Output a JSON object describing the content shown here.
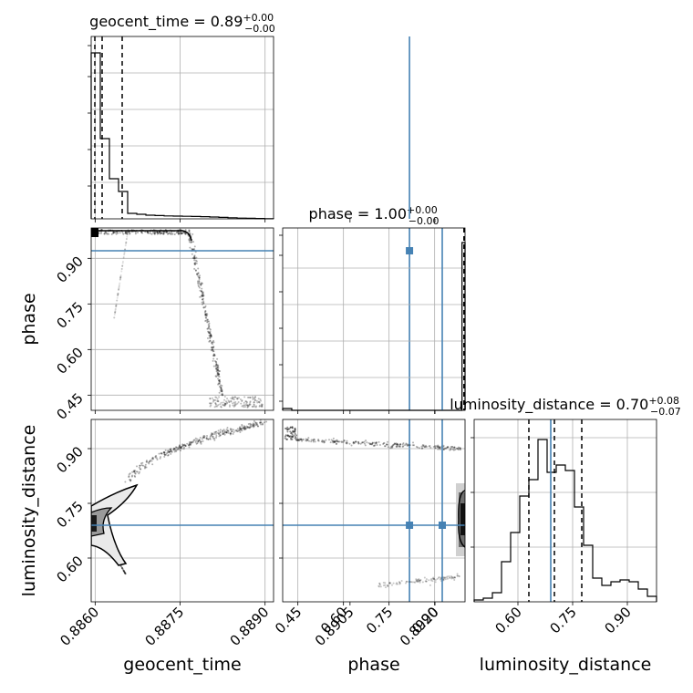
{
  "chart_data": {
    "type": "corner",
    "parameters": [
      {
        "name": "geocent_time",
        "range": [
          0.88593,
          0.88915
        ],
        "truth": 0.89155,
        "ticks": [
          "0.8860",
          "0.8875",
          "0.8890",
          "0.8905",
          "0.8920"
        ],
        "tick_values": [
          0.886,
          0.8875,
          0.889,
          0.8905,
          0.892
        ]
      },
      {
        "name": "phase",
        "range": [
          0.4,
          1.0
        ],
        "truth": 0.925,
        "ticks": [
          "0.45",
          "0.60",
          "0.75",
          "0.90"
        ],
        "tick_values": [
          0.45,
          0.6,
          0.75,
          0.9
        ]
      },
      {
        "name": "luminosity_distance",
        "range": [
          0.48,
          0.98
        ],
        "truth": 0.69,
        "ticks": [
          "0.60",
          "0.75",
          "0.90"
        ],
        "tick_values": [
          0.6,
          0.75,
          0.9
        ]
      }
    ],
    "titles": [
      {
        "text": "geocent_time = 0.89",
        "sup": "+0.00",
        "sub": "−0.00"
      },
      {
        "text": "phase = 1.00",
        "sup": "+0.00",
        "sub": "−0.00"
      },
      {
        "text": "luminosity_distance = 0.70",
        "sup": "+0.08",
        "sub": "−0.07"
      }
    ],
    "hist_geocent_time": {
      "bin_edges_fraction": [
        0,
        0.05,
        0.1,
        0.15,
        0.2,
        0.25,
        0.3,
        0.35,
        0.4,
        0.45,
        0.5,
        0.55,
        0.6,
        0.65,
        0.7,
        0.75,
        0.8,
        0.85,
        0.9,
        0.95,
        1.0
      ],
      "heights": [
        0.91,
        0.44,
        0.22,
        0.15,
        0.03,
        0.025,
        0.02,
        0.018,
        0.016,
        0.015,
        0.014,
        0.013,
        0.012,
        0.01,
        0.008,
        0.006,
        0.004,
        0.003,
        0.002,
        0.001
      ],
      "quantile_fractions": [
        0.02,
        0.06,
        0.17
      ]
    },
    "hist_phase": {
      "bins": [
        [
          0.4,
          0.43,
          0.01
        ],
        [
          0.43,
          0.99,
          0.0
        ],
        [
          0.99,
          1.0,
          0.92
        ]
      ],
      "quantiles": [
        0.998,
        0.9995,
        1.0
      ]
    },
    "hist_luminosity_distance": {
      "bin_edges": [
        0.48,
        0.505,
        0.53,
        0.555,
        0.58,
        0.605,
        0.63,
        0.655,
        0.68,
        0.705,
        0.73,
        0.755,
        0.78,
        0.805,
        0.83,
        0.855,
        0.88,
        0.905,
        0.93,
        0.955,
        0.98
      ],
      "heights": [
        0.01,
        0.02,
        0.05,
        0.22,
        0.38,
        0.58,
        0.67,
        0.89,
        0.71,
        0.75,
        0.72,
        0.52,
        0.31,
        0.13,
        0.09,
        0.11,
        0.12,
        0.11,
        0.07,
        0.03
      ],
      "quantiles": [
        0.63,
        0.7,
        0.775
      ]
    },
    "grid": true,
    "truth_color": "#4682b4",
    "contour_color": "#000000"
  }
}
